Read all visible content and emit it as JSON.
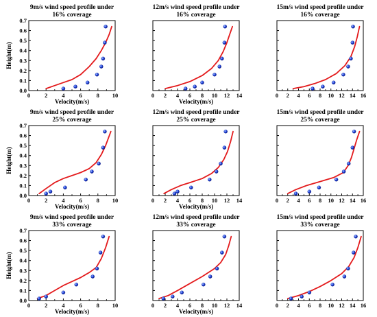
{
  "chart_data": [
    {
      "type": "scatter",
      "title": "9m/s wind speed profile under",
      "subtitle": "16% coverage",
      "xlabel": "Velocity(m/s)",
      "ylabel": "Height(m)",
      "xlim": [
        0,
        10
      ],
      "ylim": [
        0,
        0.7
      ],
      "xticks": [
        "0",
        "2",
        "4",
        "6",
        "8",
        "10"
      ],
      "yticks": [
        "0.0",
        "0.1",
        "0.2",
        "0.3",
        "0.4",
        "0.5",
        "0.6",
        "0.7"
      ],
      "grid": false,
      "legend": "none",
      "series": [
        {
          "kind": "line",
          "color": "#e31a1c",
          "x": [
            2.0,
            3.0,
            4.0,
            5.0,
            6.0,
            7.0,
            7.8,
            8.4,
            8.9,
            9.3,
            9.6
          ],
          "y": [
            0.02,
            0.05,
            0.08,
            0.11,
            0.16,
            0.24,
            0.32,
            0.4,
            0.48,
            0.56,
            0.64
          ]
        },
        {
          "kind": "points",
          "color": "#1f3fd6",
          "x": [
            4.0,
            5.4,
            6.8,
            7.9,
            8.4,
            8.6,
            8.8,
            8.9
          ],
          "y": [
            0.02,
            0.04,
            0.08,
            0.16,
            0.24,
            0.32,
            0.48,
            0.64
          ]
        }
      ]
    },
    {
      "type": "scatter",
      "title": "12m/s wind speed profile under",
      "subtitle": "16% coverage",
      "xlabel": "Velocity(m/s)",
      "ylabel": "",
      "xlim": [
        0,
        14
      ],
      "ylim": [
        0,
        0.7
      ],
      "xticks": [
        "0",
        "2",
        "4",
        "6",
        "8",
        "10",
        "12",
        "14"
      ],
      "yticks": [],
      "grid": false,
      "legend": "none",
      "series": [
        {
          "kind": "line",
          "color": "#e31a1c",
          "x": [
            2.0,
            4.0,
            6.0,
            8.0,
            9.5,
            10.6,
            11.4,
            12.0,
            12.5,
            12.9
          ],
          "y": [
            0.02,
            0.05,
            0.09,
            0.15,
            0.22,
            0.3,
            0.39,
            0.48,
            0.57,
            0.64
          ]
        },
        {
          "kind": "points",
          "color": "#1f3fd6",
          "x": [
            5.3,
            6.8,
            8.0,
            10.0,
            10.8,
            11.2,
            11.6,
            11.7
          ],
          "y": [
            0.02,
            0.04,
            0.08,
            0.16,
            0.24,
            0.32,
            0.48,
            0.64
          ]
        }
      ]
    },
    {
      "type": "scatter",
      "title": "15m/s wind speed profile under",
      "subtitle": "16% coverage",
      "xlabel": "",
      "ylabel": "",
      "xlim": [
        0,
        16
      ],
      "ylim": [
        0,
        0.7
      ],
      "xticks": [
        "0",
        "2",
        "4",
        "6",
        "8",
        "10",
        "12",
        "14",
        "16"
      ],
      "yticks": [],
      "grid": false,
      "legend": "none",
      "series": [
        {
          "kind": "line",
          "color": "#e31a1c",
          "x": [
            3.0,
            5.0,
            7.0,
            9.0,
            11.0,
            12.6,
            13.7,
            14.4,
            14.9,
            15.3
          ],
          "y": [
            0.02,
            0.04,
            0.07,
            0.11,
            0.17,
            0.25,
            0.34,
            0.44,
            0.54,
            0.64
          ]
        },
        {
          "kind": "points",
          "color": "#1f3fd6",
          "x": [
            6.6,
            8.5,
            10.5,
            12.3,
            13.2,
            13.7,
            14.0,
            14.1
          ],
          "y": [
            0.02,
            0.04,
            0.08,
            0.16,
            0.24,
            0.32,
            0.48,
            0.64
          ]
        }
      ]
    },
    {
      "type": "scatter",
      "title": "9m/s wind speed profile under",
      "subtitle": "25% coverage",
      "xlabel": "Velocity(m/s)",
      "ylabel": "Height(m)",
      "xlim": [
        0,
        10
      ],
      "ylim": [
        0,
        0.7
      ],
      "xticks": [
        "0",
        "2",
        "4",
        "6",
        "8",
        "10"
      ],
      "yticks": [
        "0.0",
        "0.1",
        "0.2",
        "0.3",
        "0.4",
        "0.5",
        "0.6",
        "0.7"
      ],
      "grid": false,
      "legend": "none",
      "series": [
        {
          "kind": "line",
          "color": "#e31a1c",
          "x": [
            1.2,
            2.0,
            3.0,
            4.0,
            5.0,
            6.0,
            7.0,
            7.8,
            8.4,
            8.9,
            9.5
          ],
          "y": [
            0.02,
            0.07,
            0.13,
            0.17,
            0.2,
            0.23,
            0.27,
            0.33,
            0.41,
            0.5,
            0.64
          ]
        },
        {
          "kind": "points",
          "color": "#1f3fd6",
          "x": [
            2.0,
            2.5,
            4.2,
            6.6,
            7.3,
            8.1,
            8.6,
            8.8
          ],
          "y": [
            0.02,
            0.04,
            0.08,
            0.16,
            0.24,
            0.32,
            0.48,
            0.64
          ]
        }
      ]
    },
    {
      "type": "scatter",
      "title": "12m/s wind speed profile under",
      "subtitle": "25% coverage",
      "xlabel": "Velocity(m/s)",
      "ylabel": "",
      "xlim": [
        0,
        14
      ],
      "ylim": [
        0,
        0.7
      ],
      "xticks": [
        "0",
        "2",
        "4",
        "6",
        "8",
        "10",
        "12",
        "14"
      ],
      "yticks": [],
      "grid": false,
      "legend": "none",
      "series": [
        {
          "kind": "line",
          "color": "#e31a1c",
          "x": [
            1.8,
            3.0,
            4.5,
            6.0,
            8.0,
            9.5,
            10.6,
            11.5,
            12.1,
            12.6,
            13.0
          ],
          "y": [
            0.02,
            0.06,
            0.1,
            0.13,
            0.17,
            0.22,
            0.28,
            0.36,
            0.44,
            0.54,
            0.64
          ]
        },
        {
          "kind": "points",
          "color": "#1f3fd6",
          "x": [
            3.5,
            4.0,
            6.2,
            9.2,
            10.3,
            11.0,
            11.6,
            11.8
          ],
          "y": [
            0.02,
            0.04,
            0.08,
            0.16,
            0.24,
            0.32,
            0.48,
            0.64
          ]
        }
      ]
    },
    {
      "type": "scatter",
      "title": "15m/s wind speed profile under",
      "subtitle": "25% coverage",
      "xlabel": "",
      "ylabel": "",
      "xlim": [
        0,
        16
      ],
      "ylim": [
        0,
        0.7
      ],
      "xticks": [
        "0",
        "2",
        "4",
        "6",
        "8",
        "10",
        "12",
        "14",
        "16"
      ],
      "yticks": [],
      "grid": false,
      "legend": "none",
      "series": [
        {
          "kind": "line",
          "color": "#e31a1c",
          "x": [
            2.0,
            3.5,
            5.5,
            8.0,
            10.5,
            12.3,
            13.2,
            13.8,
            14.3,
            14.8,
            15.3
          ],
          "y": [
            0.02,
            0.06,
            0.1,
            0.14,
            0.18,
            0.23,
            0.3,
            0.38,
            0.47,
            0.56,
            0.64
          ]
        },
        {
          "kind": "points",
          "color": "#1f3fd6",
          "x": [
            3.5,
            6.0,
            7.8,
            11.0,
            12.4,
            13.3,
            14.0,
            14.3
          ],
          "y": [
            0.02,
            0.04,
            0.08,
            0.16,
            0.24,
            0.32,
            0.48,
            0.64
          ]
        }
      ]
    },
    {
      "type": "scatter",
      "title": "9m/s wind speed profile under",
      "subtitle": "33% coverage",
      "xlabel": "Velocity(m/s)",
      "ylabel": "Height(m)",
      "xlim": [
        0,
        10
      ],
      "ylim": [
        0,
        0.7
      ],
      "xticks": [
        "0",
        "2",
        "4",
        "6",
        "8",
        "10"
      ],
      "yticks": [
        "0.0",
        "0.1",
        "0.2",
        "0.3",
        "0.4",
        "0.5",
        "0.6",
        "0.7"
      ],
      "grid": false,
      "legend": "none",
      "series": [
        {
          "kind": "line",
          "color": "#e31a1c",
          "x": [
            1.0,
            2.0,
            3.0,
            4.0,
            5.0,
            6.0,
            7.0,
            7.8,
            8.4,
            8.9,
            9.3
          ],
          "y": [
            0.02,
            0.05,
            0.1,
            0.15,
            0.19,
            0.23,
            0.28,
            0.33,
            0.42,
            0.53,
            0.64
          ]
        },
        {
          "kind": "points",
          "color": "#1f3fd6",
          "x": [
            1.2,
            2.0,
            4.0,
            5.5,
            7.4,
            7.9,
            8.3,
            8.6
          ],
          "y": [
            0.02,
            0.04,
            0.08,
            0.16,
            0.24,
            0.32,
            0.48,
            0.64
          ]
        }
      ]
    },
    {
      "type": "scatter",
      "title": "12m/s wind speed profile under",
      "subtitle": "33% coverage",
      "xlabel": "Velocity(m/s)",
      "ylabel": "",
      "xlim": [
        0,
        14
      ],
      "ylim": [
        0,
        0.7
      ],
      "xticks": [
        "0",
        "2",
        "4",
        "6",
        "8",
        "10",
        "12",
        "14"
      ],
      "yticks": [],
      "grid": false,
      "legend": "none",
      "series": [
        {
          "kind": "line",
          "color": "#e31a1c",
          "x": [
            1.0,
            2.5,
            4.0,
            6.0,
            8.0,
            10.0,
            11.0,
            11.8,
            12.3,
            12.7
          ],
          "y": [
            0.02,
            0.05,
            0.1,
            0.17,
            0.24,
            0.32,
            0.38,
            0.46,
            0.55,
            0.64
          ]
        },
        {
          "kind": "points",
          "color": "#1f3fd6",
          "x": [
            1.7,
            3.2,
            4.7,
            8.2,
            9.3,
            10.4,
            11.2,
            11.6
          ],
          "y": [
            0.02,
            0.04,
            0.08,
            0.16,
            0.24,
            0.32,
            0.48,
            0.64
          ]
        }
      ]
    },
    {
      "type": "scatter",
      "title": "15m/s wind speed profile under",
      "subtitle": "33% coverage",
      "xlabel": "",
      "ylabel": "",
      "xlim": [
        0,
        16
      ],
      "ylim": [
        0,
        0.7
      ],
      "xticks": [
        "0",
        "2",
        "4",
        "6",
        "8",
        "10",
        "12",
        "14",
        "16"
      ],
      "yticks": [],
      "grid": false,
      "legend": "none",
      "series": [
        {
          "kind": "line",
          "color": "#e31a1c",
          "x": [
            2.0,
            4.0,
            6.0,
            8.0,
            10.0,
            12.0,
            13.3,
            14.3,
            15.0,
            15.6
          ],
          "y": [
            0.02,
            0.05,
            0.09,
            0.14,
            0.2,
            0.27,
            0.34,
            0.43,
            0.53,
            0.64
          ]
        },
        {
          "kind": "points",
          "color": "#1f3fd6",
          "x": [
            2.6,
            4.6,
            6.0,
            10.3,
            12.5,
            13.2,
            14.2,
            14.6
          ],
          "y": [
            0.02,
            0.04,
            0.08,
            0.16,
            0.24,
            0.32,
            0.48,
            0.64
          ]
        }
      ]
    }
  ]
}
